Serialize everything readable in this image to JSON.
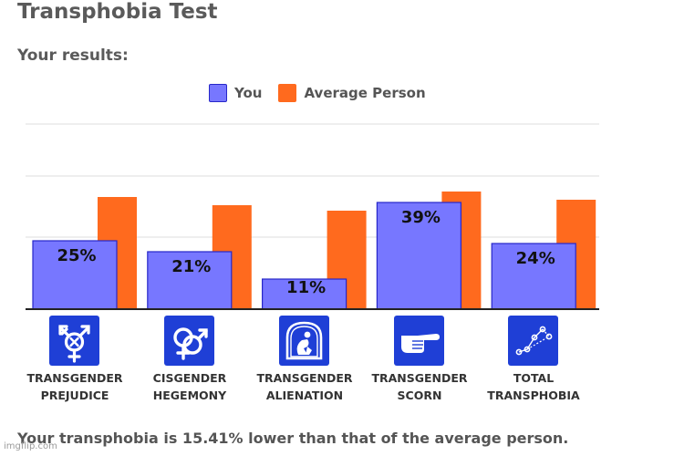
{
  "page": {
    "title": "Transphobia Test",
    "subtitle": "Your results:",
    "summary": "Your transphobia is 15.41% lower than that of the average person.",
    "watermark": "imgflip.com"
  },
  "legend": {
    "you": "You",
    "average": "Average Person"
  },
  "colors": {
    "you": "#7777ff",
    "you_stroke": "#2727c9",
    "average": "#ff6a1e",
    "grid": "#dddddd",
    "axis": "#222222",
    "icon_bg": "#1f3fd6"
  },
  "icons": [
    "transgender-symbol-icon",
    "cisgender-symbols-icon",
    "alienation-figure-icon",
    "pointing-hand-icon",
    "scatter-points-icon"
  ],
  "chart_data": {
    "type": "bar",
    "categories": [
      [
        "TRANSGENDER",
        "PREJUDICE"
      ],
      [
        "CISGENDER",
        "HEGEMONY"
      ],
      [
        "TRANSGENDER",
        "ALIENATION"
      ],
      [
        "TRANSGENDER",
        "SCORN"
      ],
      [
        "TOTAL",
        "TRANSPHOBIA"
      ]
    ],
    "series": [
      {
        "name": "You",
        "values": [
          25,
          21,
          11,
          39,
          24
        ],
        "labels": [
          "25%",
          "21%",
          "11%",
          "39%",
          "24%"
        ]
      },
      {
        "name": "Average Person",
        "values": [
          41,
          38,
          36,
          43,
          40
        ]
      }
    ],
    "ylim": [
      0,
      100
    ],
    "grid": true,
    "legend_position": "top-center"
  }
}
